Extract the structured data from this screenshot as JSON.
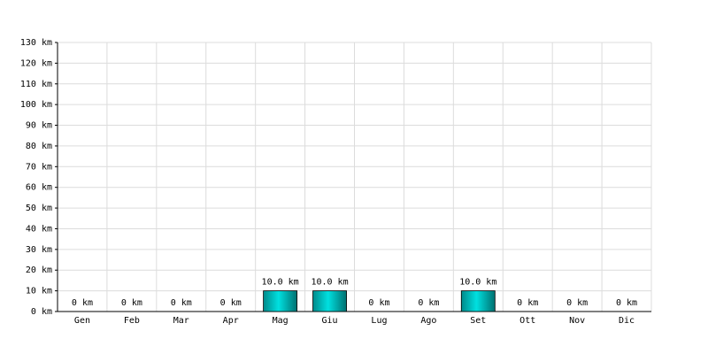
{
  "chart_data": {
    "type": "bar",
    "categories": [
      "Gen",
      "Feb",
      "Mar",
      "Apr",
      "Mag",
      "Giu",
      "Lug",
      "Ago",
      "Set",
      "Ott",
      "Nov",
      "Dic"
    ],
    "values": [
      0,
      0,
      0,
      0,
      10,
      10,
      0,
      0,
      10,
      0,
      0,
      0
    ],
    "value_labels": [
      "0 km",
      "0 km",
      "0 km",
      "0 km",
      "10.0 km",
      "10.0 km",
      "0 km",
      "0 km",
      "10.0 km",
      "0 km",
      "0 km",
      "0 km"
    ],
    "color": "#00c8c8",
    "ylim": [
      0,
      130
    ],
    "yticks": [
      {
        "value": 0,
        "label": "0 km"
      },
      {
        "value": 10,
        "label": "10 km"
      },
      {
        "value": 20,
        "label": "20 km"
      },
      {
        "value": 30,
        "label": "30 km"
      },
      {
        "value": 40,
        "label": "40 km"
      },
      {
        "value": 50,
        "label": "50 km"
      },
      {
        "value": 60,
        "label": "60 km"
      },
      {
        "value": 70,
        "label": "70 km"
      },
      {
        "value": 80,
        "label": "80 km"
      },
      {
        "value": 90,
        "label": "90 km"
      },
      {
        "value": 100,
        "label": "100 km"
      },
      {
        "value": 110,
        "label": "110 km"
      },
      {
        "value": 120,
        "label": "120 km"
      },
      {
        "value": 130,
        "label": "130 km"
      }
    ],
    "grid": true
  }
}
